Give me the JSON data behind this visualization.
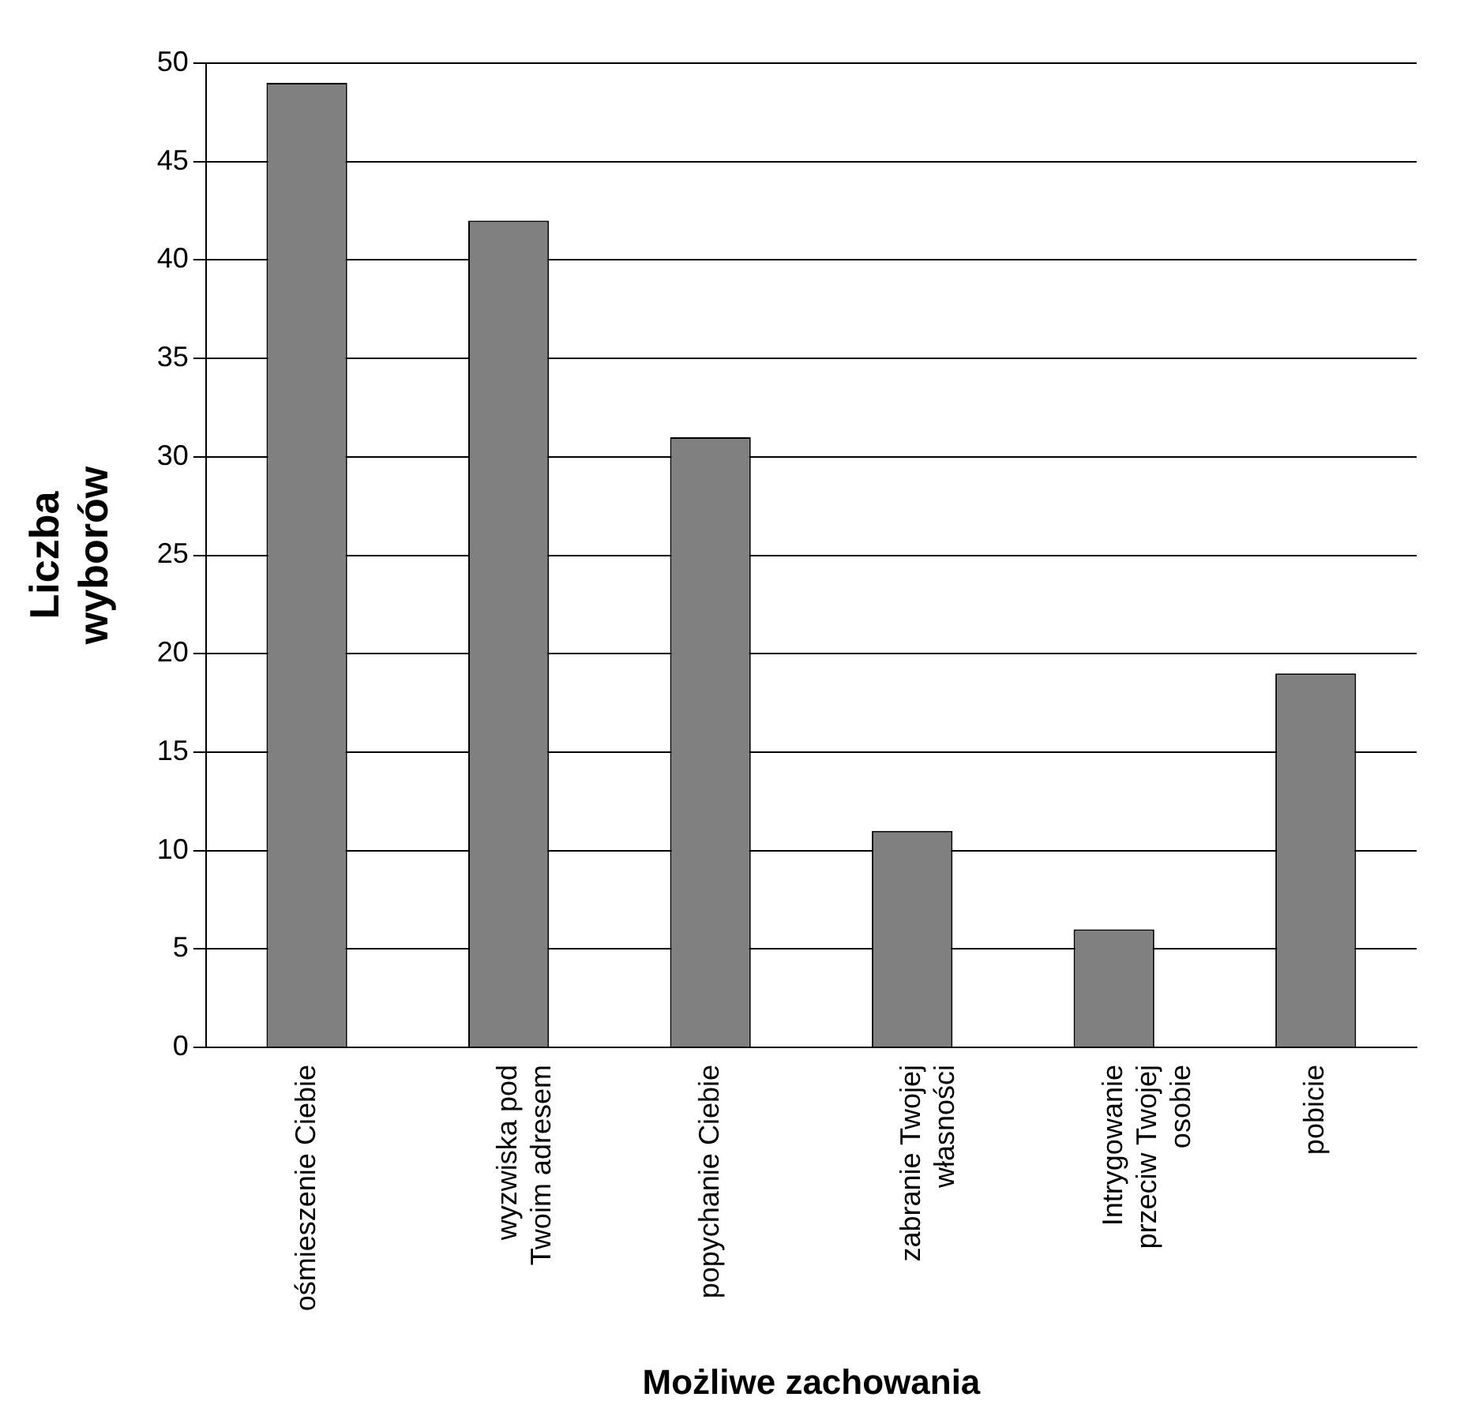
{
  "chart_data": {
    "type": "bar",
    "xlabel": "Możliwe zachowania",
    "ylabel": "Liczba\nwyborów",
    "categories": [
      "ośmieszenie Ciebie",
      "wyzwiska pod\nTwoim adresem",
      "popychanie Ciebie",
      "zabranie Twojej\nwłasności",
      "Intrygowanie\nprzeciw Twojej\nosobie",
      "pobicie"
    ],
    "values": [
      49,
      42,
      31,
      11,
      6,
      19
    ],
    "color": "#808080",
    "ylim": [
      0,
      50
    ],
    "yticks": [
      0,
      5,
      10,
      15,
      20,
      25,
      30,
      35,
      40,
      45,
      50
    ],
    "grid": "y",
    "legend": false
  }
}
